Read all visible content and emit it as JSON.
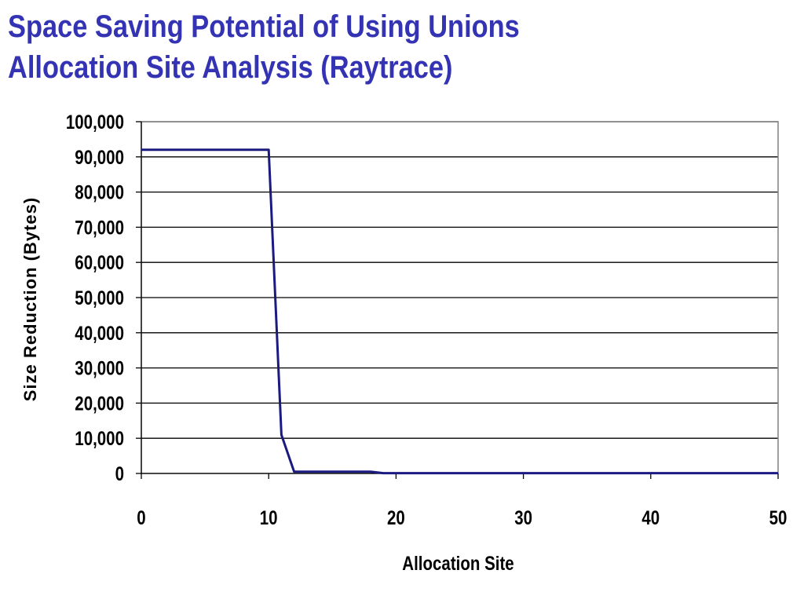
{
  "slide": {
    "title_line1": "Space Saving Potential of Using Unions",
    "title_line2": "Allocation Site Analysis (Raytrace)"
  },
  "colors": {
    "title": "#3333b3",
    "series": "#1a1a80",
    "gridline": "#000000",
    "plot_border": "#808080"
  },
  "chart_data": {
    "type": "line",
    "title": "",
    "xlabel": "Allocation Site",
    "ylabel": "Size Reduction (Bytes)",
    "xlim": [
      0,
      50
    ],
    "ylim": [
      0,
      100000
    ],
    "x_ticks": [
      0,
      10,
      20,
      30,
      40,
      50
    ],
    "x_tick_labels": [
      "0",
      "10",
      "20",
      "30",
      "40",
      "50"
    ],
    "y_ticks": [
      0,
      10000,
      20000,
      30000,
      40000,
      50000,
      60000,
      70000,
      80000,
      90000,
      100000
    ],
    "y_tick_labels": [
      "0",
      "10,000",
      "20,000",
      "30,000",
      "40,000",
      "50,000",
      "60,000",
      "70,000",
      "80,000",
      "90,000",
      "100,000"
    ],
    "grid": "horizontal",
    "legend": "none",
    "series": [
      {
        "x": [
          0,
          1,
          2,
          3,
          4,
          5,
          6,
          7,
          8,
          9,
          10,
          11,
          12,
          13,
          14,
          15,
          16,
          17,
          18,
          19,
          20,
          21,
          22,
          23,
          24,
          25,
          26,
          27,
          28,
          29,
          30,
          31,
          32,
          33,
          34,
          35,
          36,
          37,
          38,
          39,
          40,
          41,
          42,
          43,
          44,
          45,
          46,
          47,
          48,
          49,
          50
        ],
        "values": [
          92000,
          92000,
          92000,
          92000,
          92000,
          92000,
          92000,
          92000,
          92000,
          92000,
          92000,
          11000,
          500,
          500,
          500,
          500,
          500,
          500,
          500,
          100,
          100,
          100,
          100,
          100,
          100,
          100,
          100,
          100,
          100,
          100,
          100,
          100,
          100,
          100,
          100,
          100,
          100,
          100,
          100,
          100,
          100,
          100,
          100,
          100,
          100,
          100,
          100,
          100,
          100,
          100,
          100
        ]
      }
    ]
  }
}
